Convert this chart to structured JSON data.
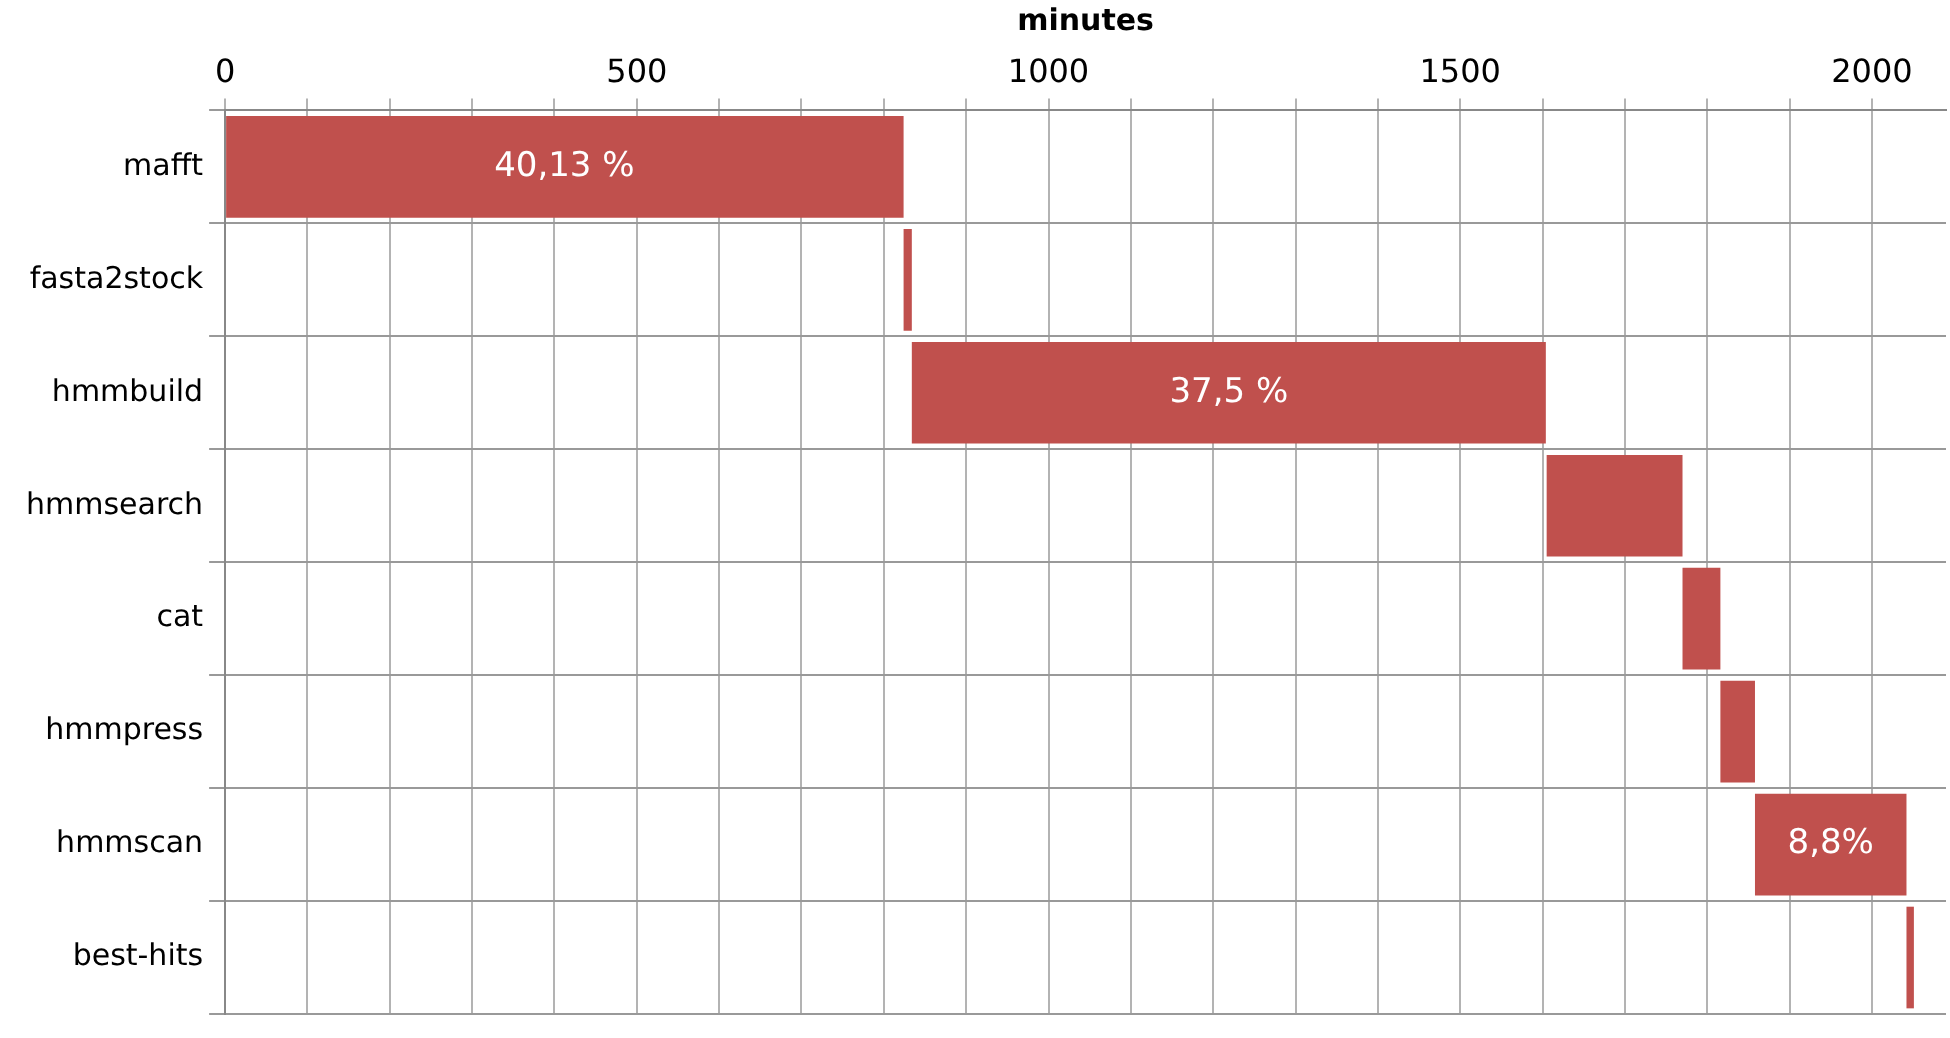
{
  "chart_data": {
    "type": "bar",
    "orientation": "horizontal",
    "xlabel": "minutes",
    "categories": [
      "mafft",
      "fasta2stock",
      "hmmbuild",
      "hmmsearch",
      "cat",
      "hmmpress",
      "hmmscan",
      "best-hits"
    ],
    "base": [
      0,
      824,
      834,
      1605,
      1770,
      1816,
      1858,
      2042
    ],
    "values": [
      824,
      10,
      770,
      165,
      46,
      42,
      184,
      9
    ],
    "annotations": [
      {
        "text": "40,13 %",
        "x": 412,
        "y": "mafft"
      },
      {
        "text": "37,5 %",
        "x": 1219,
        "y": "hmmbuild"
      },
      {
        "text": "8,8%",
        "x": 1950,
        "y": "hmmscan"
      }
    ],
    "color": "#c0504d",
    "xlim": [
      0,
      2090
    ],
    "xticks": [
      0,
      {
        "value": 100,
        "label": null
      },
      {
        "value": 200,
        "label": null
      },
      {
        "value": 300,
        "label": null
      },
      {
        "value": 400,
        "label": null
      },
      500,
      {
        "value": 600,
        "label": null
      },
      {
        "value": 700,
        "label": null
      },
      {
        "value": 800,
        "label": null
      },
      {
        "value": 900,
        "label": null
      },
      1000,
      {
        "value": 1100,
        "label": null
      },
      {
        "value": 1200,
        "label": null
      },
      {
        "value": 1300,
        "label": null
      },
      {
        "value": 1400,
        "label": null
      },
      1500,
      {
        "value": 1600,
        "label": null
      },
      {
        "value": 1700,
        "label": null
      },
      {
        "value": 1800,
        "label": null
      },
      {
        "value": 1900,
        "label": null
      },
      2000
    ],
    "grid": true,
    "legend": false
  }
}
